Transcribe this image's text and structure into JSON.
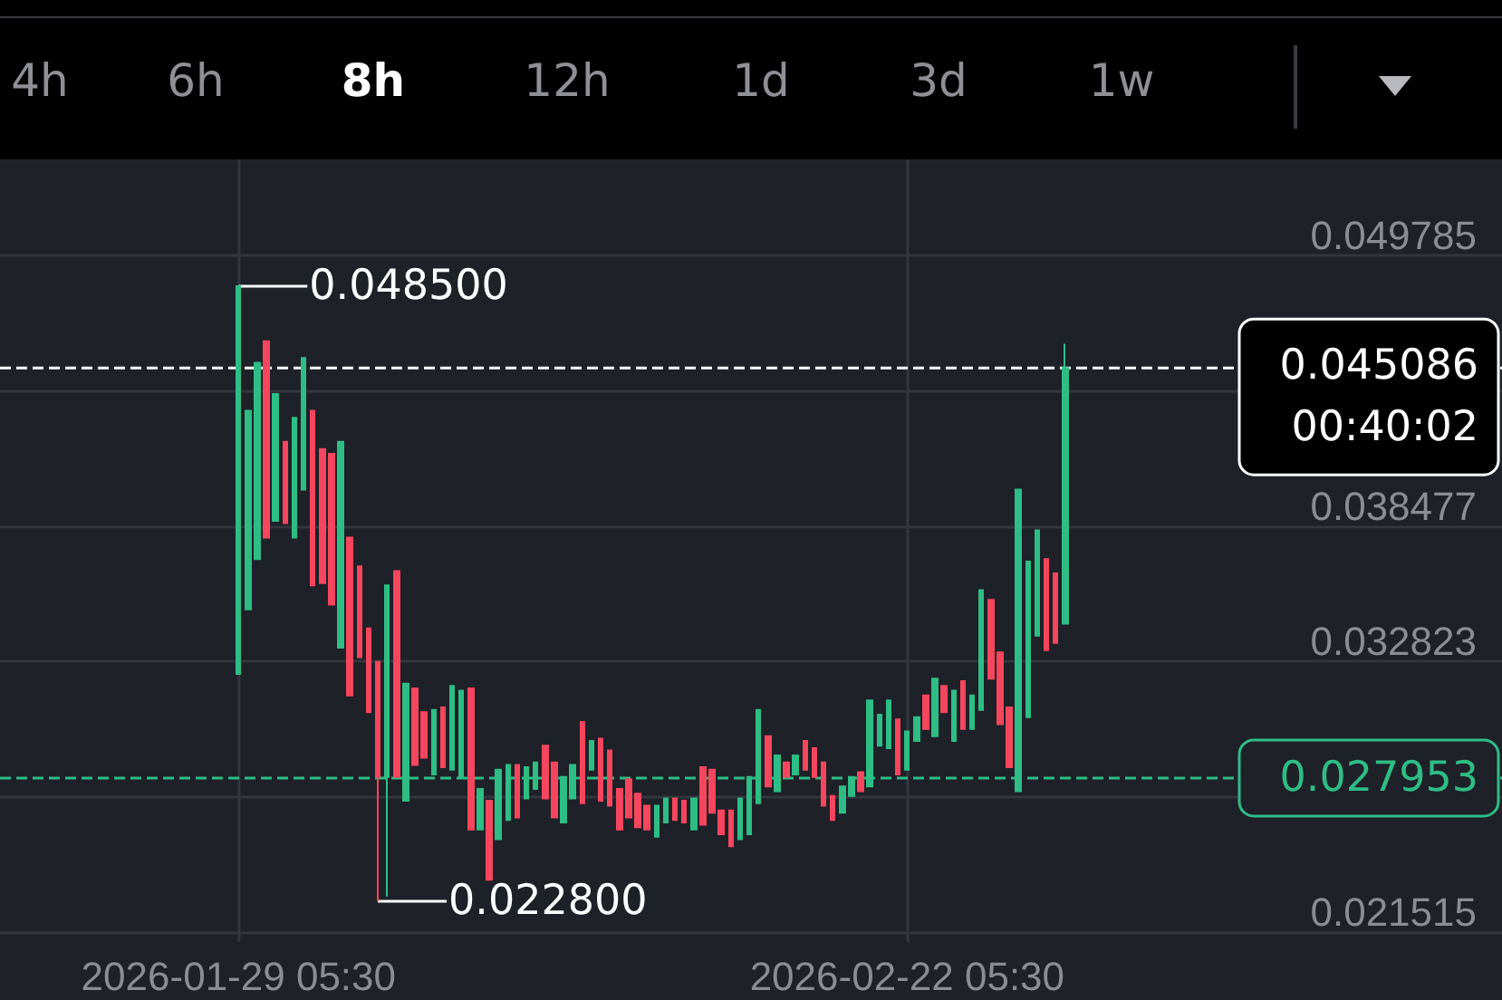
{
  "chart_data": {
    "type": "candlestick",
    "x": [
      "2026-01-29T05:30",
      "2026-01-29T13:30",
      "2026-01-29T21:30",
      "2026-01-30T05:30",
      "2026-01-30T13:30",
      "2026-01-30T21:30",
      "2026-01-31T05:30",
      "2026-01-31T13:30",
      "2026-01-31T21:30",
      "2026-02-01T05:30",
      "2026-02-01T13:30",
      "2026-02-01T21:30",
      "2026-02-02T05:30",
      "2026-02-02T13:30",
      "2026-02-02T21:30",
      "2026-02-03T05:30",
      "2026-02-03T13:30",
      "2026-02-03T21:30",
      "2026-02-04T05:30",
      "2026-02-04T13:30",
      "2026-02-04T21:30",
      "2026-02-05T05:30",
      "2026-02-05T13:30",
      "2026-02-05T21:30",
      "2026-02-06T05:30",
      "2026-02-06T13:30",
      "2026-02-06T21:30",
      "2026-02-07T05:30",
      "2026-02-07T13:30",
      "2026-02-07T21:30",
      "2026-02-08T05:30",
      "2026-02-08T13:30",
      "2026-02-08T21:30",
      "2026-02-09T05:30",
      "2026-02-09T13:30",
      "2026-02-09T21:30",
      "2026-02-10T05:30",
      "2026-02-10T13:30",
      "2026-02-10T21:30",
      "2026-02-11T05:30",
      "2026-02-11T13:30",
      "2026-02-11T21:30",
      "2026-02-12T05:30",
      "2026-02-12T13:30",
      "2026-02-12T21:30",
      "2026-02-13T05:30",
      "2026-02-13T13:30",
      "2026-02-13T21:30",
      "2026-02-14T05:30",
      "2026-02-14T13:30",
      "2026-02-14T21:30",
      "2026-02-15T05:30",
      "2026-02-15T13:30",
      "2026-02-15T21:30",
      "2026-02-16T05:30",
      "2026-02-16T13:30",
      "2026-02-16T21:30",
      "2026-02-17T05:30",
      "2026-02-17T13:30",
      "2026-02-17T21:30",
      "2026-02-18T05:30",
      "2026-02-18T13:30",
      "2026-02-18T21:30",
      "2026-02-19T05:30",
      "2026-02-19T13:30",
      "2026-02-19T21:30",
      "2026-02-20T05:30",
      "2026-02-20T13:30",
      "2026-02-20T21:30",
      "2026-02-21T05:30",
      "2026-02-21T13:30",
      "2026-02-21T21:30",
      "2026-02-22T05:30",
      "2026-02-22T13:30",
      "2026-02-22T21:30",
      "2026-02-23T05:30",
      "2026-02-23T13:30",
      "2026-02-23T21:30",
      "2026-02-24T05:30",
      "2026-02-24T13:30",
      "2026-02-24T21:30",
      "2026-02-25T05:30",
      "2026-02-25T13:30",
      "2026-02-25T21:30",
      "2026-02-26T05:30",
      "2026-02-26T13:30",
      "2026-02-26T21:30",
      "2026-02-27T05:30",
      "2026-02-27T13:30",
      "2026-02-27T21:30"
    ],
    "ohlc": [
      [
        0.0323,
        0.0485,
        0.0323,
        0.0485
      ],
      [
        0.035,
        0.0433,
        0.035,
        0.0433
      ],
      [
        0.0371,
        0.0453,
        0.0371,
        0.0453
      ],
      [
        0.0462,
        0.0462,
        0.038,
        0.038
      ],
      [
        0.0387,
        0.044,
        0.0387,
        0.044
      ],
      [
        0.042,
        0.042,
        0.0386,
        0.0386
      ],
      [
        0.038,
        0.043,
        0.038,
        0.043
      ],
      [
        0.04,
        0.0455,
        0.04,
        0.0455
      ],
      [
        0.0433,
        0.0433,
        0.036,
        0.036
      ],
      [
        0.0417,
        0.0417,
        0.0361,
        0.0361
      ],
      [
        0.0415,
        0.0415,
        0.0352,
        0.0352
      ],
      [
        0.0334,
        0.042,
        0.0334,
        0.042
      ],
      [
        0.038,
        0.038,
        0.0314,
        0.0314
      ],
      [
        0.0368,
        0.0368,
        0.033,
        0.033
      ],
      [
        0.0342,
        0.0342,
        0.0307,
        0.0307
      ],
      [
        0.0328,
        0.0328,
        0.0228,
        0.028
      ],
      [
        0.028,
        0.036,
        0.023,
        0.036
      ],
      [
        0.0366,
        0.0366,
        0.028,
        0.028
      ],
      [
        0.027,
        0.0319,
        0.027,
        0.0319
      ],
      [
        0.0317,
        0.0317,
        0.0285,
        0.0285
      ],
      [
        0.0307,
        0.0307,
        0.0288,
        0.0288
      ],
      [
        0.0281,
        0.0308,
        0.0281,
        0.0308
      ],
      [
        0.0309,
        0.0309,
        0.0284,
        0.0284
      ],
      [
        0.0283,
        0.0318,
        0.0283,
        0.0318
      ],
      [
        0.028,
        0.0316,
        0.028,
        0.0316
      ],
      [
        0.0317,
        0.0317,
        0.0258,
        0.0258
      ],
      [
        0.0258,
        0.0275,
        0.0258,
        0.0275
      ],
      [
        0.027,
        0.027,
        0.0237,
        0.0237
      ],
      [
        0.0254,
        0.0283,
        0.0254,
        0.0283
      ],
      [
        0.0262,
        0.0285,
        0.0262,
        0.0285
      ],
      [
        0.0285,
        0.0285,
        0.0263,
        0.0263
      ],
      [
        0.0271,
        0.0284,
        0.0271,
        0.0284
      ],
      [
        0.0275,
        0.0286,
        0.0275,
        0.0286
      ],
      [
        0.0293,
        0.0293,
        0.0271,
        0.0271
      ],
      [
        0.0286,
        0.0286,
        0.0263,
        0.0263
      ],
      [
        0.0261,
        0.028,
        0.0261,
        0.028
      ],
      [
        0.0271,
        0.0285,
        0.0271,
        0.0285
      ],
      [
        0.0303,
        0.0303,
        0.0269,
        0.0269
      ],
      [
        0.0283,
        0.0295,
        0.0283,
        0.0295
      ],
      [
        0.0296,
        0.0296,
        0.027,
        0.027
      ],
      [
        0.0291,
        0.0291,
        0.0268,
        0.0268
      ],
      [
        0.0275,
        0.0275,
        0.0258,
        0.0258
      ],
      [
        0.0279,
        0.0279,
        0.0263,
        0.0263
      ],
      [
        0.0273,
        0.0273,
        0.0259,
        0.0259
      ],
      [
        0.0268,
        0.0268,
        0.0258,
        0.0258
      ],
      [
        0.0255,
        0.0268,
        0.0255,
        0.0268
      ],
      [
        0.0261,
        0.0271,
        0.0261,
        0.0271
      ],
      [
        0.0271,
        0.0271,
        0.0262,
        0.0262
      ],
      [
        0.027,
        0.027,
        0.0261,
        0.0261
      ],
      [
        0.0258,
        0.0271,
        0.0258,
        0.0271
      ],
      [
        0.0284,
        0.0284,
        0.026,
        0.026
      ],
      [
        0.0283,
        0.0283,
        0.0265,
        0.0265
      ],
      [
        0.0266,
        0.0266,
        0.0256,
        0.0256
      ],
      [
        0.0266,
        0.0266,
        0.0251,
        0.0251
      ],
      [
        0.0254,
        0.0271,
        0.0254,
        0.0271
      ],
      [
        0.0256,
        0.028,
        0.0256,
        0.028
      ],
      [
        0.0269,
        0.0308,
        0.0269,
        0.0308
      ],
      [
        0.0297,
        0.0297,
        0.0276,
        0.0276
      ],
      [
        0.0274,
        0.0289,
        0.0274,
        0.0289
      ],
      [
        0.0286,
        0.0286,
        0.028,
        0.028
      ],
      [
        0.0281,
        0.0289,
        0.0281,
        0.0289
      ],
      [
        0.0295,
        0.0295,
        0.0283,
        0.0283
      ],
      [
        0.0292,
        0.0292,
        0.028,
        0.028
      ],
      [
        0.0286,
        0.0286,
        0.0268,
        0.0268
      ],
      [
        0.0272,
        0.0272,
        0.0262,
        0.0262
      ],
      [
        0.0265,
        0.0276,
        0.0265,
        0.0276
      ],
      [
        0.0272,
        0.028,
        0.0272,
        0.028
      ],
      [
        0.0282,
        0.0282,
        0.0274,
        0.0274
      ],
      [
        0.0276,
        0.0312,
        0.0276,
        0.0312
      ],
      [
        0.0293,
        0.0306,
        0.0293,
        0.0306
      ],
      [
        0.0292,
        0.0312,
        0.0292,
        0.0312
      ],
      [
        0.0304,
        0.0304,
        0.0281,
        0.0281
      ],
      [
        0.0283,
        0.0299,
        0.0283,
        0.0299
      ],
      [
        0.0295,
        0.0305,
        0.0295,
        0.0305
      ],
      [
        0.0314,
        0.0314,
        0.03,
        0.03
      ],
      [
        0.0297,
        0.0321,
        0.0297,
        0.0321
      ],
      [
        0.0318,
        0.0318,
        0.0307,
        0.0307
      ],
      [
        0.0295,
        0.0316,
        0.0295,
        0.0316
      ],
      [
        0.032,
        0.032,
        0.03,
        0.03
      ],
      [
        0.03,
        0.0314,
        0.03,
        0.0314
      ],
      [
        0.0308,
        0.0358,
        0.0308,
        0.0358
      ],
      [
        0.0354,
        0.0354,
        0.0321,
        0.0321
      ],
      [
        0.0332,
        0.0332,
        0.0302,
        0.0302
      ],
      [
        0.0309,
        0.0309,
        0.0284,
        0.0284
      ],
      [
        0.0274,
        0.04,
        0.0274,
        0.04
      ],
      [
        0.0305,
        0.037,
        0.0305,
        0.037
      ],
      [
        0.0339,
        0.0383,
        0.0339,
        0.0383
      ],
      [
        0.0371,
        0.0371,
        0.0333,
        0.0333
      ],
      [
        0.0365,
        0.0365,
        0.0336,
        0.0336
      ],
      [
        0.0344,
        0.0461,
        0.0344,
        0.045086
      ]
    ],
    "colors": [
      "#2ebd85",
      "#2ebd85",
      "#2ebd85",
      "#f6465d",
      "#2ebd85",
      "#f6465d",
      "#2ebd85",
      "#2ebd85",
      "#f6465d",
      "#f6465d",
      "#f6465d",
      "#2ebd85",
      "#f6465d",
      "#f6465d",
      "#f6465d",
      "#f6465d",
      "#2ebd85",
      "#f6465d",
      "#2ebd85",
      "#f6465d",
      "#f6465d",
      "#2ebd85",
      "#f6465d",
      "#2ebd85",
      "#2ebd85",
      "#f6465d",
      "#2ebd85",
      "#f6465d",
      "#2ebd85",
      "#2ebd85",
      "#f6465d",
      "#2ebd85",
      "#2ebd85",
      "#f6465d",
      "#f6465d",
      "#2ebd85",
      "#2ebd85",
      "#f6465d",
      "#2ebd85",
      "#f6465d",
      "#f6465d",
      "#f6465d",
      "#f6465d",
      "#f6465d",
      "#f6465d",
      "#2ebd85",
      "#2ebd85",
      "#f6465d",
      "#f6465d",
      "#2ebd85",
      "#f6465d",
      "#f6465d",
      "#f6465d",
      "#f6465d",
      "#2ebd85",
      "#2ebd85",
      "#2ebd85",
      "#f6465d",
      "#2ebd85",
      "#f6465d",
      "#2ebd85",
      "#f6465d",
      "#f6465d",
      "#f6465d",
      "#f6465d",
      "#2ebd85",
      "#2ebd85",
      "#f6465d",
      "#2ebd85",
      "#2ebd85",
      "#2ebd85",
      "#f6465d",
      "#2ebd85",
      "#2ebd85",
      "#f6465d",
      "#2ebd85",
      "#f6465d",
      "#2ebd85",
      "#f6465d",
      "#2ebd85",
      "#2ebd85",
      "#f6465d",
      "#f6465d",
      "#f6465d",
      "#2ebd85",
      "#2ebd85",
      "#2ebd85",
      "#f6465d",
      "#f6465d",
      "#2ebd85"
    ],
    "xlim": [
      "2026-01-20T16:00",
      "2026-03-15T14:00"
    ],
    "xticks": [
      {
        "value": "2026-01-29T05:30",
        "label": "2026-01-29 05:30"
      },
      {
        "value": "2026-02-22T05:30",
        "label": "2026-02-22 05:30"
      }
    ],
    "ylim": [
      0.0211,
      0.0538
    ],
    "yticks": [
      0.049785,
      {
        "value": 0.044131,
        "label": null
      },
      0.038477,
      0.032823,
      {
        "value": 0.027169,
        "label": null
      },
      0.021515
    ],
    "grid": true,
    "ref_lines": [
      {
        "axis": "y",
        "value": 0.027953,
        "label": "0.027953",
        "color": "#2ebd85",
        "line_style": "dashed"
      },
      {
        "axis": "y",
        "value": 0.045086,
        "label": "0.045086\n00:40:02",
        "color": "#ffffff",
        "line_style": "dashed"
      }
    ],
    "annotations": [
      "4h",
      "6h",
      "8h",
      "12h",
      "1d",
      "3d",
      "1w",
      {
        "text": "0.048500",
        "x": "2026-01-29T05:30",
        "y": 0.0485
      },
      {
        "text": "0.022800",
        "x": "2026-02-03T05:30",
        "y": 0.0228
      }
    ]
  }
}
